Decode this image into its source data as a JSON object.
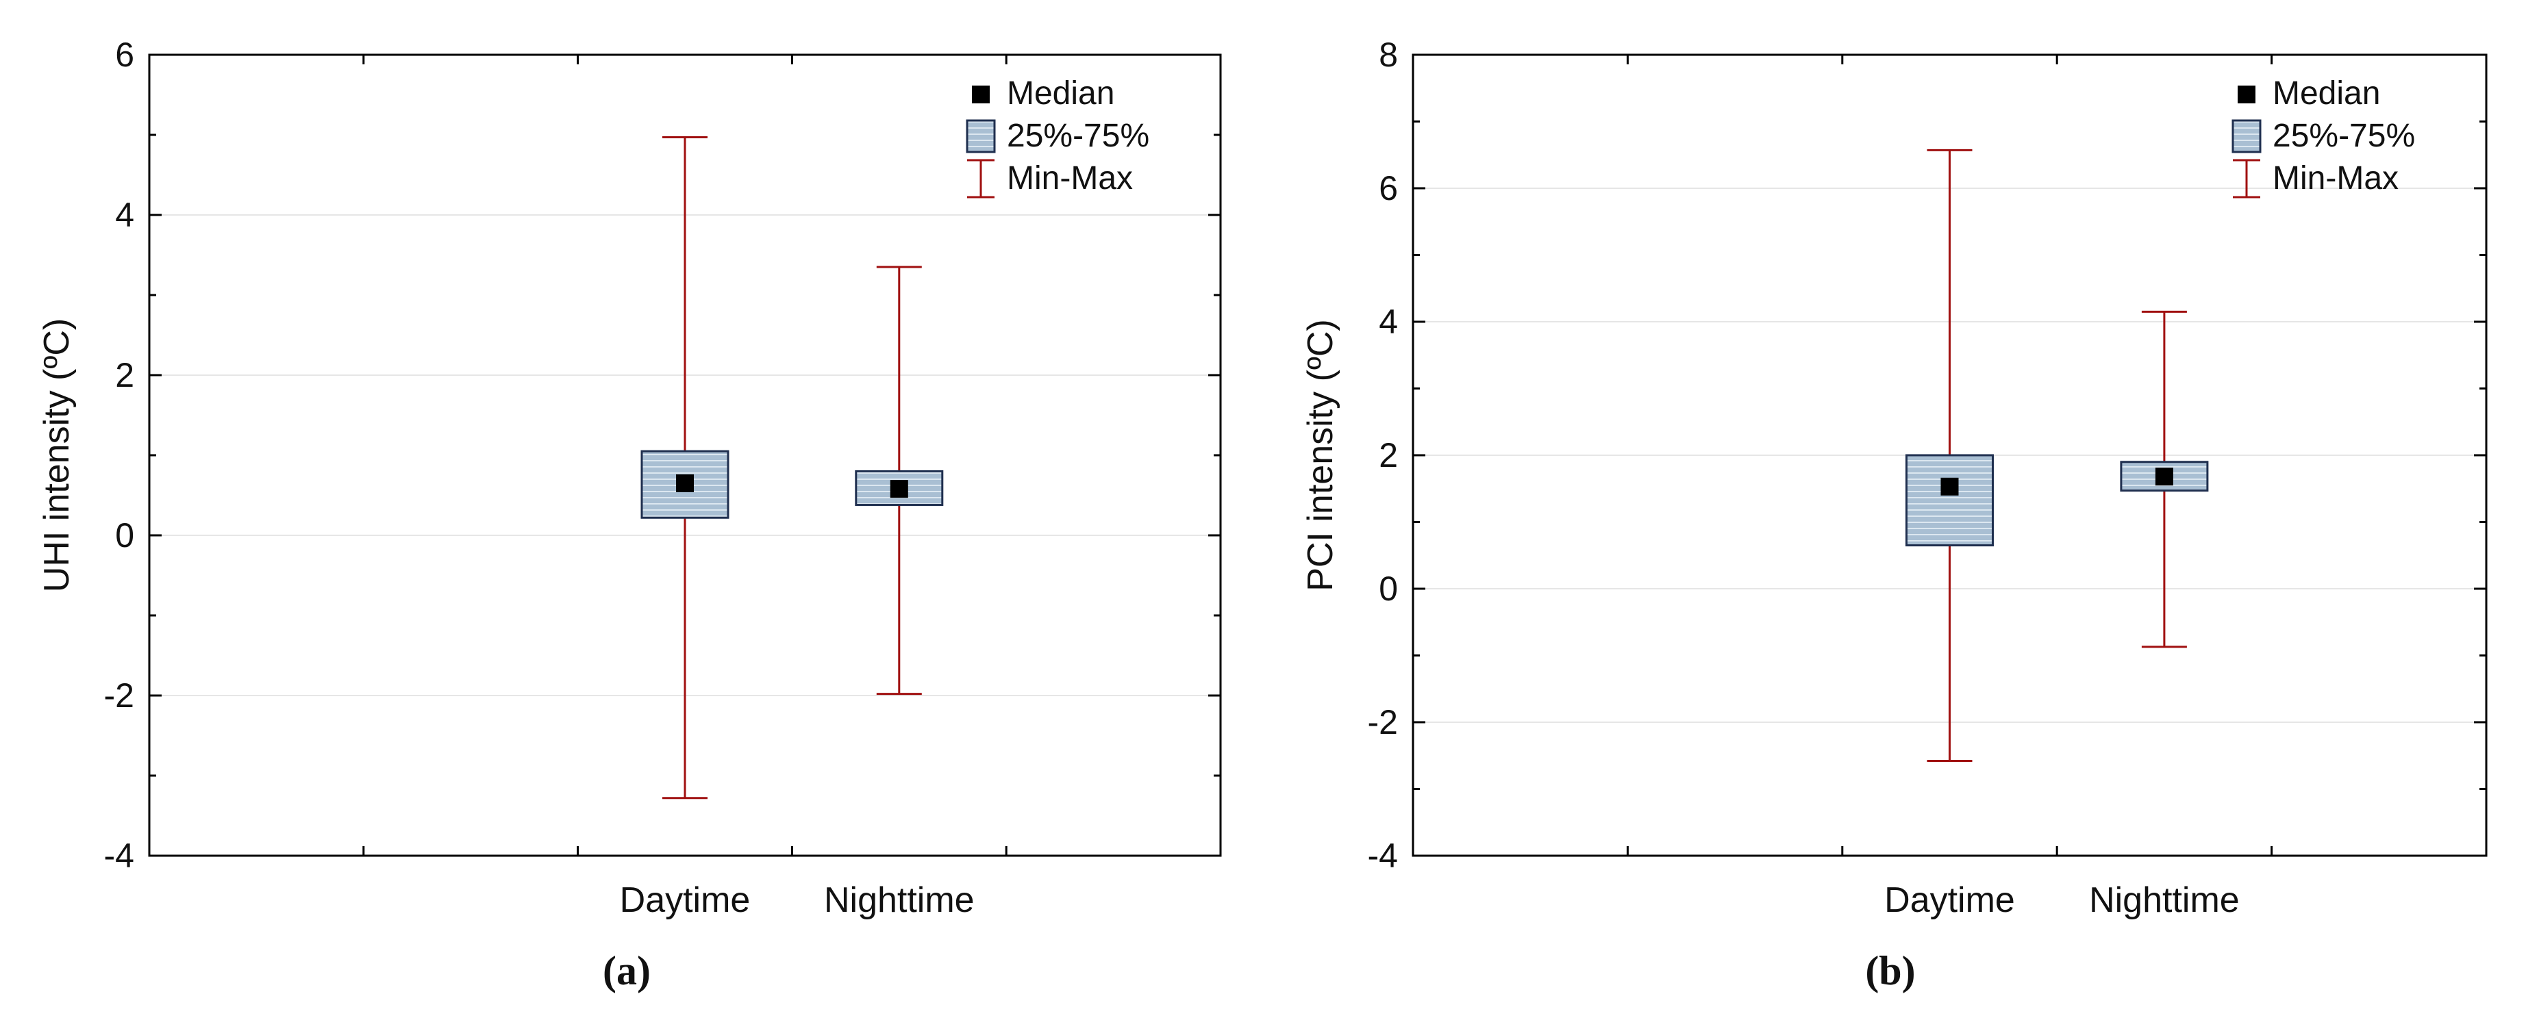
{
  "colors": {
    "whisker": "#a01010",
    "box_fill": "#a9bfd3",
    "box_stripe": "#dce7f0",
    "box_stroke": "#1f2f4f",
    "median": "#000000",
    "grid": "#e6e6e6",
    "axis": "#000000"
  },
  "chart_data": [
    {
      "type": "box",
      "panel_label": "(a)",
      "ylabel": "UHI intensity (ºC)",
      "ylim": [
        -4,
        6
      ],
      "yticks": [
        -4,
        -2,
        0,
        2,
        4,
        6
      ],
      "ytick_labels": [
        "-4",
        "-2",
        "0",
        "2",
        "4",
        "6"
      ],
      "categories": [
        "Daytime",
        "Nighttime"
      ],
      "series": [
        {
          "name": "Daytime",
          "min": -3.28,
          "q1": 0.22,
          "median": 0.65,
          "q3": 1.05,
          "max": 4.97
        },
        {
          "name": "Nighttime",
          "min": -1.98,
          "q1": 0.38,
          "median": 0.58,
          "q3": 0.8,
          "max": 3.35
        }
      ],
      "legend": {
        "position": "top-right",
        "items": [
          {
            "kind": "median",
            "label": "Median"
          },
          {
            "kind": "box",
            "label": "25%-75%"
          },
          {
            "kind": "whisker",
            "label": "Min-Max"
          }
        ]
      },
      "grid": true
    },
    {
      "type": "box",
      "panel_label": "(b)",
      "ylabel": "PCI intensity (ºC)",
      "ylim": [
        -4,
        8
      ],
      "yticks": [
        -4,
        -2,
        0,
        2,
        4,
        6,
        8
      ],
      "ytick_labels": [
        "-4",
        "-2",
        "0",
        "2",
        "4",
        "6",
        "8"
      ],
      "categories": [
        "Daytime",
        "Nighttime"
      ],
      "series": [
        {
          "name": "Daytime",
          "min": -2.58,
          "q1": 0.65,
          "median": 1.53,
          "q3": 2.0,
          "max": 6.57
        },
        {
          "name": "Nighttime",
          "min": -0.87,
          "q1": 1.47,
          "median": 1.68,
          "q3": 1.9,
          "max": 4.15
        }
      ],
      "legend": {
        "position": "top-right",
        "items": [
          {
            "kind": "median",
            "label": "Median"
          },
          {
            "kind": "box",
            "label": "25%-75%"
          },
          {
            "kind": "whisker",
            "label": "Min-Max"
          }
        ]
      },
      "grid": true
    }
  ]
}
